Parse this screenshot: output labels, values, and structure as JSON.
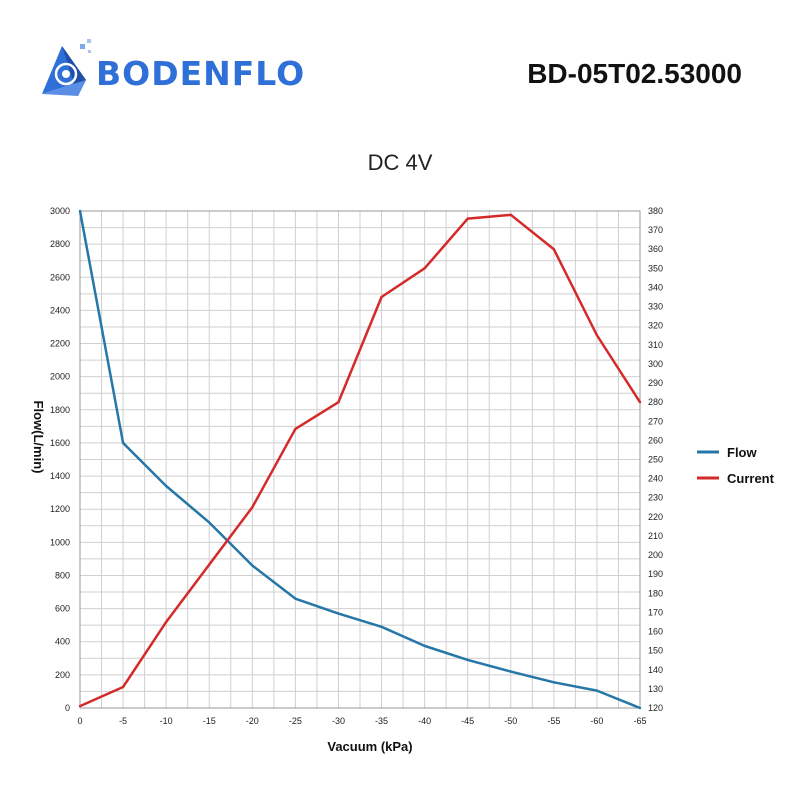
{
  "header": {
    "brand": "BODENFLO",
    "model": "BD-05T02.53000"
  },
  "colors": {
    "brand_blue": "#2f6fd8",
    "flow": "#2677a8",
    "current": "#d42a2a",
    "grid": "#cfcfcf"
  },
  "chart_data": {
    "type": "line",
    "title": "DC 4V",
    "xlabel": "Vacuum (kPa)",
    "ylabel": "Flow(L/min)",
    "y2label": "",
    "x": [
      0,
      -5,
      -10,
      -15,
      -20,
      -25,
      -30,
      -35,
      -40,
      -45,
      -50,
      -55,
      -60,
      -65
    ],
    "x_tick_labels": [
      "0",
      "-5",
      "-10",
      "-15",
      "-20",
      "-25",
      "-30",
      "-35",
      "-40",
      "-45",
      "-50",
      "-55",
      "-60",
      "-65"
    ],
    "xlim": [
      0,
      -65
    ],
    "ylim": [
      0,
      3000
    ],
    "y_ticks": [
      0,
      200,
      400,
      600,
      800,
      1000,
      1200,
      1400,
      1600,
      1800,
      2000,
      2200,
      2400,
      2600,
      2800,
      3000
    ],
    "y2lim": [
      120,
      380
    ],
    "y2_ticks": [
      120,
      130,
      140,
      150,
      160,
      170,
      180,
      190,
      200,
      210,
      220,
      230,
      240,
      250,
      260,
      270,
      280,
      290,
      300,
      310,
      320,
      330,
      340,
      350,
      360,
      370,
      380
    ],
    "grid": true,
    "legend_position": "right",
    "series": [
      {
        "name": "Flow",
        "axis": "left",
        "values": [
          3000,
          1600,
          1340,
          1120,
          860,
          660,
          570,
          490,
          375,
          290,
          220,
          155,
          105,
          0
        ]
      },
      {
        "name": "Current",
        "axis": "right",
        "values": [
          121,
          131,
          165,
          195,
          225,
          266,
          280,
          335,
          350,
          376,
          378,
          360,
          315,
          280
        ]
      }
    ]
  }
}
